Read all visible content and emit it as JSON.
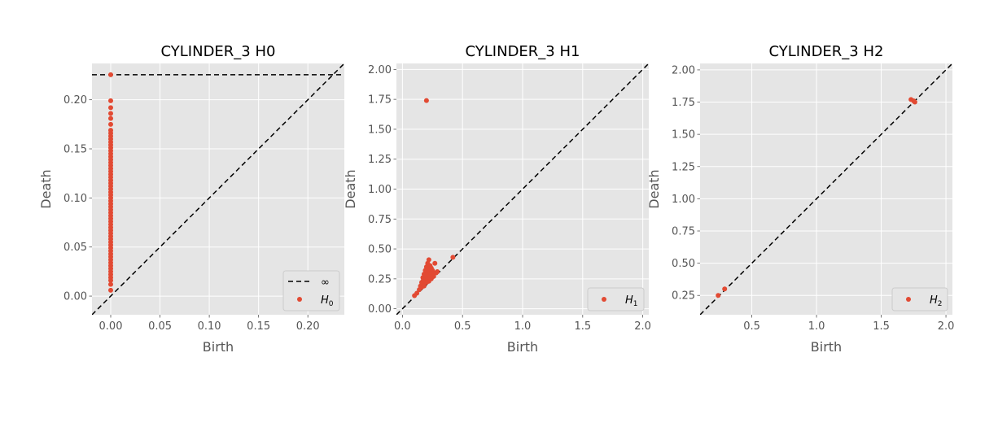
{
  "figure": {
    "background": "#ffffff",
    "axes_background": "#e5e5e5",
    "grid_color": "#ffffff",
    "point_color": "#e24a33",
    "tick_label_color": "#555555",
    "title_color": "#000000",
    "diagonal_style": "black dashed"
  },
  "chart_data": [
    {
      "type": "scatter",
      "title": "CYLINDER_3 H0",
      "xlabel": "Birth",
      "ylabel": "Death",
      "xlim": [
        -0.019,
        0.237
      ],
      "ylim": [
        -0.019,
        0.237
      ],
      "xticks": [
        0.0,
        0.05,
        0.1,
        0.15,
        0.2
      ],
      "xtick_labels": [
        "0.00",
        "0.05",
        "0.10",
        "0.15",
        "0.20"
      ],
      "yticks": [
        0.0,
        0.05,
        0.1,
        0.15,
        0.2
      ],
      "ytick_labels": [
        "0.00",
        "0.05",
        "0.10",
        "0.15",
        "0.20"
      ],
      "grid": true,
      "diagonal": true,
      "infinity_line": 0.2255,
      "legend_position": "bottom-right",
      "legend": [
        {
          "kind": "line",
          "label": "∞"
        },
        {
          "kind": "point",
          "label": "H",
          "subscript": "0"
        }
      ],
      "series": [
        {
          "name": "H0",
          "points": [
            [
              0,
              0.006
            ],
            [
              0,
              0.012
            ],
            [
              0,
              0.016
            ],
            [
              0,
              0.019
            ],
            [
              0,
              0.022
            ],
            [
              0,
              0.025
            ],
            [
              0,
              0.028
            ],
            [
              0,
              0.031
            ],
            [
              0,
              0.034
            ],
            [
              0,
              0.037
            ],
            [
              0,
              0.04
            ],
            [
              0,
              0.043
            ],
            [
              0,
              0.046
            ],
            [
              0,
              0.049
            ],
            [
              0,
              0.052
            ],
            [
              0,
              0.055
            ],
            [
              0,
              0.058
            ],
            [
              0,
              0.061
            ],
            [
              0,
              0.064
            ],
            [
              0,
              0.067
            ],
            [
              0,
              0.07
            ],
            [
              0,
              0.073
            ],
            [
              0,
              0.076
            ],
            [
              0,
              0.079
            ],
            [
              0,
              0.082
            ],
            [
              0,
              0.085
            ],
            [
              0,
              0.088
            ],
            [
              0,
              0.091
            ],
            [
              0,
              0.094
            ],
            [
              0,
              0.097
            ],
            [
              0,
              0.1
            ],
            [
              0,
              0.103
            ],
            [
              0,
              0.106
            ],
            [
              0,
              0.109
            ],
            [
              0,
              0.112
            ],
            [
              0,
              0.115
            ],
            [
              0,
              0.118
            ],
            [
              0,
              0.121
            ],
            [
              0,
              0.124
            ],
            [
              0,
              0.127
            ],
            [
              0,
              0.13
            ],
            [
              0,
              0.133
            ],
            [
              0,
              0.136
            ],
            [
              0,
              0.139
            ],
            [
              0,
              0.142
            ],
            [
              0,
              0.145
            ],
            [
              0,
              0.148
            ],
            [
              0,
              0.151
            ],
            [
              0,
              0.154
            ],
            [
              0,
              0.157
            ],
            [
              0,
              0.16
            ],
            [
              0,
              0.163
            ],
            [
              0,
              0.166
            ],
            [
              0,
              0.169
            ],
            [
              0,
              0.175
            ],
            [
              0,
              0.181
            ],
            [
              0,
              0.186
            ],
            [
              0,
              0.192
            ],
            [
              0,
              0.199
            ],
            [
              0,
              0.2255
            ]
          ]
        }
      ]
    },
    {
      "type": "scatter",
      "title": "CYLINDER_3 H1",
      "xlabel": "Birth",
      "ylabel": "Death",
      "xlim": [
        -0.05,
        2.05
      ],
      "ylim": [
        -0.05,
        2.05
      ],
      "xticks": [
        0.0,
        0.5,
        1.0,
        1.5,
        2.0
      ],
      "xtick_labels": [
        "0.0",
        "0.5",
        "1.0",
        "1.5",
        "2.0"
      ],
      "yticks": [
        0.0,
        0.25,
        0.5,
        0.75,
        1.0,
        1.25,
        1.5,
        1.75,
        2.0
      ],
      "ytick_labels": [
        "0.00",
        "0.25",
        "0.50",
        "0.75",
        "1.00",
        "1.25",
        "1.50",
        "1.75",
        "2.00"
      ],
      "grid": true,
      "diagonal": true,
      "legend_position": "bottom-right",
      "legend": [
        {
          "kind": "point",
          "label": "H",
          "subscript": "1"
        }
      ],
      "series": [
        {
          "name": "H1",
          "points": [
            [
              0.2,
              1.74
            ],
            [
              0.42,
              0.43
            ],
            [
              0.1,
              0.11
            ],
            [
              0.12,
              0.13
            ],
            [
              0.14,
              0.16
            ],
            [
              0.15,
              0.19
            ],
            [
              0.16,
              0.22
            ],
            [
              0.17,
              0.26
            ],
            [
              0.18,
              0.29
            ],
            [
              0.19,
              0.32
            ],
            [
              0.2,
              0.35
            ],
            [
              0.21,
              0.38
            ],
            [
              0.22,
              0.41
            ],
            [
              0.16,
              0.18
            ],
            [
              0.18,
              0.21
            ],
            [
              0.19,
              0.24
            ],
            [
              0.2,
              0.27
            ],
            [
              0.21,
              0.3
            ],
            [
              0.22,
              0.33
            ],
            [
              0.23,
              0.36
            ],
            [
              0.2,
              0.22
            ],
            [
              0.21,
              0.25
            ],
            [
              0.22,
              0.28
            ],
            [
              0.23,
              0.31
            ],
            [
              0.24,
              0.34
            ],
            [
              0.22,
              0.23
            ],
            [
              0.23,
              0.26
            ],
            [
              0.24,
              0.29
            ],
            [
              0.25,
              0.32
            ],
            [
              0.26,
              0.27
            ],
            [
              0.27,
              0.38
            ],
            [
              0.28,
              0.3
            ],
            [
              0.24,
              0.25
            ],
            [
              0.25,
              0.28
            ],
            [
              0.18,
              0.19
            ],
            [
              0.17,
              0.23
            ],
            [
              0.19,
              0.28
            ],
            [
              0.21,
              0.33
            ],
            [
              0.26,
              0.3
            ],
            [
              0.29,
              0.31
            ]
          ]
        }
      ]
    },
    {
      "type": "scatter",
      "title": "CYLINDER_3 H2",
      "xlabel": "Birth",
      "ylabel": "Death",
      "xlim": [
        0.1,
        2.05
      ],
      "ylim": [
        0.1,
        2.05
      ],
      "xticks": [
        0.5,
        1.0,
        1.5,
        2.0
      ],
      "xtick_labels": [
        "0.5",
        "1.0",
        "1.5",
        "2.0"
      ],
      "yticks": [
        0.25,
        0.5,
        0.75,
        1.0,
        1.25,
        1.5,
        1.75,
        2.0
      ],
      "ytick_labels": [
        "0.25",
        "0.50",
        "0.75",
        "1.00",
        "1.25",
        "1.50",
        "1.75",
        "2.00"
      ],
      "grid": true,
      "diagonal": true,
      "legend_position": "bottom-right",
      "legend": [
        {
          "kind": "point",
          "label": "H",
          "subscript": "2"
        }
      ],
      "series": [
        {
          "name": "H2",
          "points": [
            [
              0.24,
              0.25
            ],
            [
              0.29,
              0.3
            ],
            [
              1.73,
              1.77
            ],
            [
              1.75,
              1.76
            ],
            [
              1.76,
              1.75
            ]
          ]
        }
      ]
    }
  ]
}
